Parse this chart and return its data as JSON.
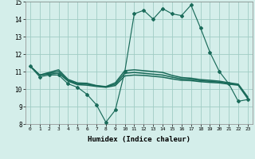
{
  "xlabel": "Humidex (Indice chaleur)",
  "ylabel": "",
  "x": [
    0,
    1,
    2,
    3,
    4,
    5,
    6,
    7,
    8,
    9,
    10,
    11,
    12,
    13,
    14,
    15,
    16,
    17,
    18,
    19,
    20,
    21,
    22,
    23
  ],
  "line1": [
    11.3,
    10.7,
    10.8,
    10.8,
    10.3,
    10.1,
    9.7,
    9.1,
    8.1,
    8.8,
    11.0,
    14.3,
    14.5,
    14.0,
    14.6,
    14.3,
    14.2,
    14.8,
    13.5,
    12.1,
    11.0,
    10.3,
    9.3,
    9.4
  ],
  "line2": [
    11.3,
    10.8,
    10.85,
    10.9,
    10.45,
    10.25,
    10.22,
    10.15,
    10.1,
    10.2,
    10.75,
    10.8,
    10.78,
    10.73,
    10.68,
    10.58,
    10.5,
    10.48,
    10.42,
    10.38,
    10.35,
    10.28,
    10.22,
    9.45
  ],
  "line3": [
    11.3,
    10.8,
    10.9,
    11.0,
    10.5,
    10.3,
    10.28,
    10.18,
    10.12,
    10.28,
    10.9,
    10.95,
    10.9,
    10.85,
    10.8,
    10.68,
    10.58,
    10.55,
    10.48,
    10.44,
    10.4,
    10.32,
    10.25,
    9.5
  ],
  "line4": [
    11.3,
    10.8,
    10.95,
    11.1,
    10.55,
    10.35,
    10.33,
    10.2,
    10.14,
    10.36,
    11.05,
    11.1,
    11.05,
    11.0,
    10.95,
    10.78,
    10.66,
    10.62,
    10.54,
    10.5,
    10.45,
    10.36,
    10.28,
    9.55
  ],
  "ylim": [
    8,
    15
  ],
  "yticks": [
    8,
    9,
    10,
    11,
    12,
    13,
    14,
    15
  ],
  "xticks": [
    0,
    1,
    2,
    3,
    4,
    5,
    6,
    7,
    8,
    9,
    10,
    11,
    12,
    13,
    14,
    15,
    16,
    17,
    18,
    19,
    20,
    21,
    22,
    23
  ],
  "line_color": "#1a6b5a",
  "bg_color": "#d4eeea",
  "grid_color": "#a0ccc4",
  "marker": "D",
  "markersize": 2.0,
  "lw_main": 0.85,
  "lw_trend": 1.1
}
